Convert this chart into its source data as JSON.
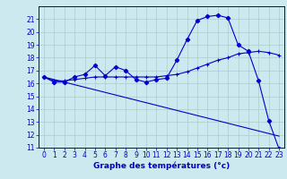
{
  "xlabel": "Graphe des températures (°c)",
  "bg_color": "#cce9f0",
  "grid_color": "#aacccc",
  "line_color": "#0000cc",
  "hours": [
    0,
    1,
    2,
    3,
    4,
    5,
    6,
    7,
    8,
    9,
    10,
    11,
    12,
    13,
    14,
    15,
    16,
    17,
    18,
    19,
    20,
    21,
    22,
    23
  ],
  "temp_actual": [
    16.5,
    16.1,
    16.1,
    16.5,
    16.7,
    17.4,
    16.6,
    17.3,
    17.0,
    16.3,
    16.1,
    16.3,
    16.4,
    17.8,
    19.4,
    20.9,
    21.2,
    21.3,
    21.1,
    19.0,
    18.5,
    16.2,
    13.1,
    10.9
  ],
  "temp_avg": [
    16.5,
    16.2,
    16.2,
    16.3,
    16.4,
    16.5,
    16.5,
    16.5,
    16.5,
    16.5,
    16.5,
    16.5,
    16.6,
    16.7,
    16.9,
    17.2,
    17.5,
    17.8,
    18.0,
    18.3,
    18.4,
    18.5,
    18.4,
    18.2
  ],
  "temp_linear": [
    16.5,
    16.3,
    16.1,
    15.9,
    15.7,
    15.5,
    15.3,
    15.1,
    14.9,
    14.7,
    14.5,
    14.3,
    14.1,
    13.9,
    13.7,
    13.5,
    13.3,
    13.1,
    12.9,
    12.7,
    12.5,
    12.3,
    12.1,
    11.9
  ],
  "ylim": [
    11,
    22
  ],
  "xlim": [
    -0.5,
    23.5
  ],
  "yticks": [
    11,
    12,
    13,
    14,
    15,
    16,
    17,
    18,
    19,
    20,
    21
  ],
  "xticks": [
    0,
    1,
    2,
    3,
    4,
    5,
    6,
    7,
    8,
    9,
    10,
    11,
    12,
    13,
    14,
    15,
    16,
    17,
    18,
    19,
    20,
    21,
    22,
    23
  ],
  "tick_fontsize": 5.5,
  "xlabel_fontsize": 6.5
}
